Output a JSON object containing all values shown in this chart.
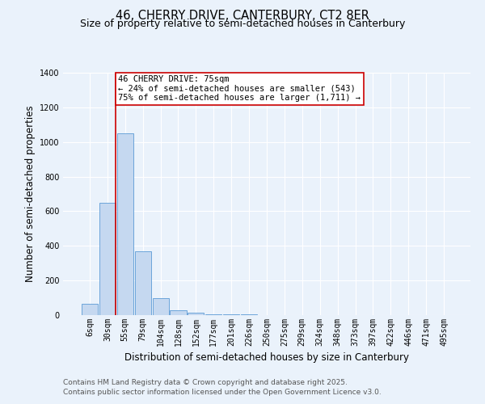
{
  "title_line1": "46, CHERRY DRIVE, CANTERBURY, CT2 8ER",
  "title_line2": "Size of property relative to semi-detached houses in Canterbury",
  "xlabel": "Distribution of semi-detached houses by size in Canterbury",
  "ylabel": "Number of semi-detached properties",
  "footer_line1": "Contains HM Land Registry data © Crown copyright and database right 2025.",
  "footer_line2": "Contains public sector information licensed under the Open Government Licence v3.0.",
  "annotation_line1": "46 CHERRY DRIVE: 75sqm",
  "annotation_line2": "← 24% of semi-detached houses are smaller (543)",
  "annotation_line3": "75% of semi-detached houses are larger (1,711) →",
  "bin_labels": [
    "6sqm",
    "30sqm",
    "55sqm",
    "79sqm",
    "104sqm",
    "128sqm",
    "152sqm",
    "177sqm",
    "201sqm",
    "226sqm",
    "250sqm",
    "275sqm",
    "299sqm",
    "324sqm",
    "348sqm",
    "373sqm",
    "397sqm",
    "422sqm",
    "446sqm",
    "471sqm",
    "495sqm"
  ],
  "bar_values": [
    65,
    650,
    1050,
    370,
    100,
    30,
    15,
    5,
    5,
    3,
    0,
    0,
    0,
    0,
    0,
    0,
    0,
    0,
    0,
    0,
    0
  ],
  "bar_color": "#c5d8f0",
  "bar_edge_color": "#5b9bd5",
  "highlight_line_color": "#cc0000",
  "ylim": [
    0,
    1400
  ],
  "yticks": [
    0,
    200,
    400,
    600,
    800,
    1000,
    1200,
    1400
  ],
  "background_color": "#eaf2fb",
  "grid_color": "#ffffff",
  "annotation_box_color": "#ffffff",
  "annotation_box_edge": "#cc0000",
  "title_fontsize": 10.5,
  "subtitle_fontsize": 9,
  "axis_label_fontsize": 8.5,
  "tick_fontsize": 7,
  "annotation_fontsize": 7.5,
  "footer_fontsize": 6.5
}
